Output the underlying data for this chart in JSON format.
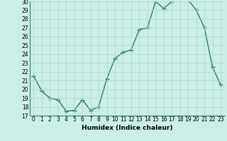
{
  "x": [
    0,
    1,
    2,
    3,
    4,
    5,
    6,
    7,
    8,
    9,
    10,
    11,
    12,
    13,
    14,
    15,
    16,
    17,
    18,
    19,
    20,
    21,
    22,
    23
  ],
  "y": [
    21.5,
    19.8,
    19.0,
    18.8,
    17.5,
    17.6,
    18.8,
    17.6,
    18.0,
    21.2,
    23.5,
    24.2,
    24.5,
    26.8,
    27.0,
    30.0,
    29.2,
    30.0,
    30.2,
    30.2,
    29.0,
    27.0,
    22.5,
    20.5
  ],
  "line_color": "#2d7a6a",
  "marker": "+",
  "marker_size": 4,
  "marker_linewidth": 1.0,
  "bg_color": "#cceee8",
  "grid_color": "#aad4cc",
  "xlabel": "Humidex (Indice chaleur)",
  "ylim": [
    17,
    30
  ],
  "xlim_min": -0.5,
  "xlim_max": 23.5,
  "yticks": [
    17,
    18,
    19,
    20,
    21,
    22,
    23,
    24,
    25,
    26,
    27,
    28,
    29,
    30
  ],
  "xticks": [
    0,
    1,
    2,
    3,
    4,
    5,
    6,
    7,
    8,
    9,
    10,
    11,
    12,
    13,
    14,
    15,
    16,
    17,
    18,
    19,
    20,
    21,
    22,
    23
  ],
  "tick_fontsize": 5.5,
  "label_fontsize": 6.5,
  "linewidth": 1.0
}
